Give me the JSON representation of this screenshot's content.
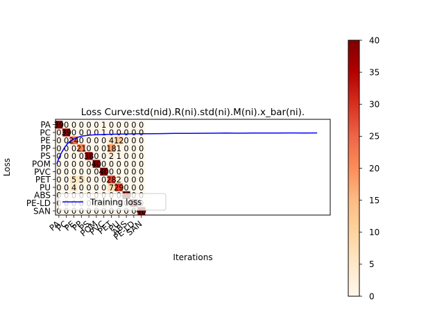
{
  "chart_data": [
    {
      "type": "heatmap",
      "rows": [
        "PA",
        "PC",
        "PE",
        "PP",
        "PS",
        "POM",
        "PVC",
        "PET",
        "PU",
        "ABS",
        "PE-LD",
        "SAN"
      ],
      "cols": [
        "PA",
        "PC",
        "PE",
        "PP",
        "PS",
        "POM",
        "PVC",
        "PET",
        "PU",
        "ABS",
        "PE-LD",
        "SAN"
      ],
      "values": [
        [
          39,
          0,
          0,
          0,
          0,
          0,
          1,
          0,
          0,
          0,
          0,
          0
        ],
        [
          0,
          39,
          0,
          0,
          0,
          0,
          1,
          0,
          0,
          0,
          0,
          0
        ],
        [
          0,
          0,
          24,
          0,
          0,
          0,
          0,
          4,
          12,
          0,
          0,
          0
        ],
        [
          0,
          0,
          0,
          21,
          0,
          0,
          0,
          18,
          1,
          0,
          0,
          0
        ],
        [
          0,
          0,
          0,
          0,
          38,
          0,
          0,
          2,
          1,
          0,
          0,
          0
        ],
        [
          0,
          0,
          0,
          0,
          0,
          40,
          0,
          0,
          0,
          0,
          0,
          0
        ],
        [
          0,
          0,
          0,
          0,
          0,
          0,
          40,
          0,
          0,
          0,
          0,
          0
        ],
        [
          0,
          0,
          5,
          5,
          0,
          0,
          0,
          28,
          2,
          0,
          0,
          0
        ],
        [
          0,
          0,
          4,
          0,
          0,
          0,
          0,
          7,
          29,
          0,
          0,
          0
        ],
        [
          0,
          0,
          0,
          0,
          0,
          0,
          0,
          0,
          0,
          40,
          0,
          0
        ],
        [
          0,
          0,
          0,
          0,
          0,
          0,
          0,
          0,
          0,
          0,
          40,
          0
        ],
        [
          0,
          0,
          0,
          0,
          0,
          0,
          0,
          0,
          0,
          0,
          0,
          40
        ]
      ],
      "colormap": "OrRd",
      "vmin": 0,
      "vmax": 40,
      "colorbar_ticks": [
        0,
        5,
        10,
        15,
        20,
        25,
        30,
        35,
        40
      ]
    },
    {
      "type": "line",
      "title": "Loss Curve:std(nid).R(ni).std(ni).M(ni).x_bar(ni).",
      "xlabel": "Iterations",
      "ylabel": "Loss",
      "series": [
        {
          "name": "Training loss",
          "color": "#0000ff",
          "x": [
            0,
            2,
            4,
            6,
            8,
            10,
            13,
            16,
            20,
            25,
            30,
            40,
            50,
            60,
            70,
            80,
            90,
            100,
            110,
            120,
            130,
            140,
            150,
            160,
            170,
            180,
            190,
            200
          ],
          "y": [
            0.6,
            0.68,
            0.74,
            0.79,
            0.83,
            0.86,
            0.89,
            0.91,
            0.925,
            0.935,
            0.94,
            0.945,
            0.948,
            0.95,
            0.952,
            0.953,
            0.955,
            0.956,
            0.957,
            0.958,
            0.96,
            0.958,
            0.959,
            0.96,
            0.959,
            0.961,
            0.96,
            0.961
          ]
        }
      ],
      "xlim": [
        -1,
        210
      ],
      "ylim": [
        0,
        1.12
      ],
      "legend": "lower-left",
      "grid": false
    }
  ]
}
